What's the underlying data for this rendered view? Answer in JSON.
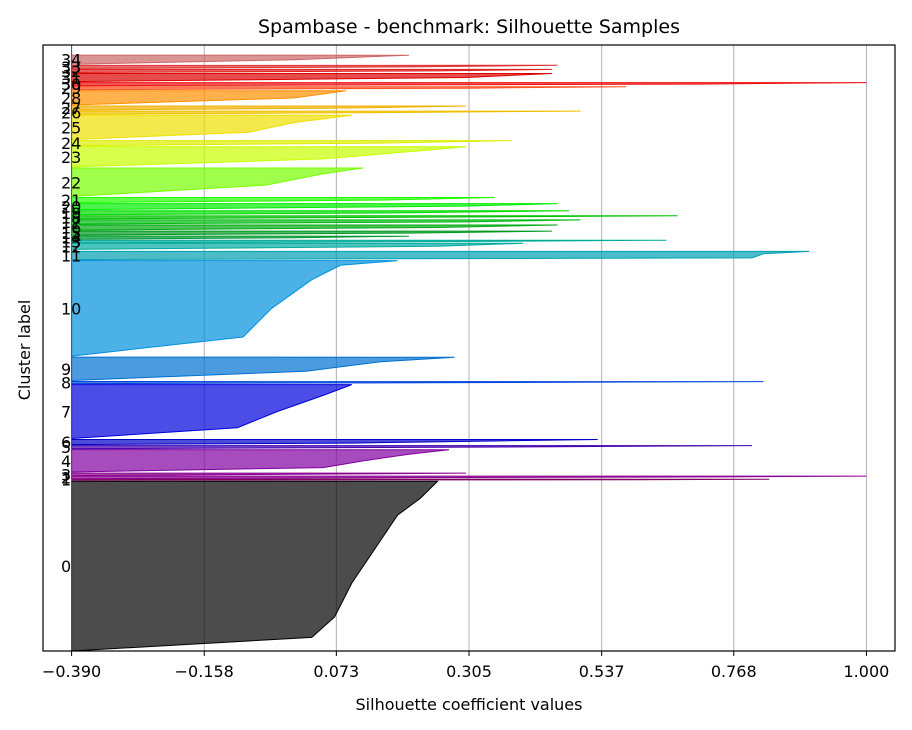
{
  "chart_data": {
    "type": "area",
    "title": "Spambase - benchmark: Silhouette Samples",
    "xlabel": "Silhouette coefficient values",
    "ylabel": "Cluster label",
    "xlim": [
      -0.44,
      1.05
    ],
    "xticks": [
      -0.39,
      -0.158,
      0.073,
      0.305,
      0.537,
      0.768,
      1.0
    ],
    "xtick_labels": [
      "−0.390",
      "−0.158",
      "0.073",
      "0.305",
      "0.537",
      "0.768",
      "1.000"
    ],
    "grid": "vertical",
    "baseline": -0.39,
    "clusters": [
      {
        "label": "0",
        "color": "#000000",
        "band": [
          0,
          167
        ],
        "profile": [
          [
            0.0,
            0.25
          ],
          [
            0.1,
            0.22
          ],
          [
            0.2,
            0.18
          ],
          [
            0.4,
            0.14
          ],
          [
            0.6,
            0.1
          ],
          [
            0.8,
            0.07
          ],
          [
            0.92,
            0.03
          ],
          [
            1.0,
            -0.39
          ]
        ]
      },
      {
        "label": "1",
        "color": "#800060",
        "band": [
          168,
          169
        ],
        "profile": [
          [
            0.0,
            0.83
          ],
          [
            0.5,
            0.6
          ],
          [
            1.0,
            -0.39
          ]
        ]
      },
      {
        "label": "2",
        "color": "#8a0090",
        "band": [
          169.5,
          172
        ],
        "profile": [
          [
            0.0,
            1.0
          ],
          [
            0.3,
            0.75
          ],
          [
            0.6,
            0.2
          ],
          [
            1.0,
            -0.39
          ]
        ]
      },
      {
        "label": "3",
        "color": "#8a0090",
        "band": [
          172.5,
          175
        ],
        "profile": [
          [
            0.0,
            0.3
          ],
          [
            0.5,
            0.0
          ],
          [
            1.0,
            -0.39
          ]
        ]
      },
      {
        "label": "4",
        "color": "#8000a0",
        "band": [
          176,
          198
        ],
        "profile": [
          [
            0.0,
            0.27
          ],
          [
            0.2,
            0.2
          ],
          [
            0.5,
            0.12
          ],
          [
            0.8,
            0.05
          ],
          [
            1.0,
            -0.39
          ]
        ]
      },
      {
        "label": "5",
        "color": "#4000b0",
        "band": [
          199,
          202
        ],
        "profile": [
          [
            0.0,
            0.8
          ],
          [
            0.4,
            0.45
          ],
          [
            1.0,
            -0.39
          ]
        ]
      },
      {
        "label": "6",
        "color": "#0000c8",
        "band": [
          203,
          208
        ],
        "profile": [
          [
            0.0,
            0.53
          ],
          [
            0.3,
            0.35
          ],
          [
            0.7,
            0.1
          ],
          [
            1.0,
            -0.39
          ]
        ]
      },
      {
        "label": "7",
        "color": "#0000dd",
        "band": [
          209,
          262
        ],
        "profile": [
          [
            0.0,
            0.1
          ],
          [
            0.2,
            0.05
          ],
          [
            0.5,
            -0.03
          ],
          [
            0.8,
            -0.1
          ],
          [
            1.0,
            -0.39
          ]
        ]
      },
      {
        "label": "8",
        "color": "#0044dd",
        "band": [
          263,
          265
        ],
        "profile": [
          [
            0.0,
            0.82
          ],
          [
            0.5,
            0.3
          ],
          [
            1.0,
            -0.39
          ]
        ]
      },
      {
        "label": "9",
        "color": "#0070d0",
        "band": [
          266,
          289
        ],
        "profile": [
          [
            0.0,
            0.28
          ],
          [
            0.2,
            0.15
          ],
          [
            0.6,
            0.02
          ],
          [
            1.0,
            -0.39
          ]
        ]
      },
      {
        "label": "10",
        "color": "#0090dd",
        "band": [
          290,
          384
        ],
        "profile": [
          [
            0.0,
            0.18
          ],
          [
            0.05,
            0.08
          ],
          [
            0.2,
            0.03
          ],
          [
            0.5,
            -0.04
          ],
          [
            0.8,
            -0.09
          ],
          [
            1.0,
            -0.39
          ]
        ]
      },
      {
        "label": "11",
        "color": "#00a0b0",
        "band": [
          385,
          393
        ],
        "profile": [
          [
            0.0,
            0.9
          ],
          [
            0.3,
            0.82
          ],
          [
            0.8,
            0.8
          ],
          [
            1.0,
            -0.39
          ]
        ]
      },
      {
        "label": "12",
        "color": "#00aaa0",
        "band": [
          395,
          401
        ],
        "profile": [
          [
            0.0,
            0.4
          ],
          [
            0.5,
            0.25
          ],
          [
            1.0,
            -0.39
          ]
        ]
      },
      {
        "label": "13",
        "color": "#00aa99",
        "band": [
          401.5,
          404
        ],
        "profile": [
          [
            0.0,
            0.65
          ],
          [
            0.5,
            0.3
          ],
          [
            1.0,
            -0.39
          ]
        ]
      },
      {
        "label": "14",
        "color": "#009930",
        "band": [
          405,
          408
        ],
        "profile": [
          [
            0.0,
            0.2
          ],
          [
            0.5,
            0.0
          ],
          [
            1.0,
            -0.39
          ]
        ]
      },
      {
        "label": "15",
        "color": "#009920",
        "band": [
          409,
          413
        ],
        "profile": [
          [
            0.0,
            0.45
          ],
          [
            0.5,
            0.2
          ],
          [
            1.0,
            -0.39
          ]
        ]
      },
      {
        "label": "16",
        "color": "#00aa10",
        "band": [
          414,
          419
        ],
        "profile": [
          [
            0.0,
            0.46
          ],
          [
            0.5,
            0.25
          ],
          [
            1.0,
            -0.39
          ]
        ]
      },
      {
        "label": "17",
        "color": "#00bb10",
        "band": [
          420,
          424
        ],
        "profile": [
          [
            0.0,
            0.5
          ],
          [
            0.5,
            0.3
          ],
          [
            1.0,
            -0.39
          ]
        ]
      },
      {
        "label": "18",
        "color": "#00c000",
        "band": [
          425,
          428
        ],
        "profile": [
          [
            0.0,
            0.67
          ],
          [
            0.5,
            0.2
          ],
          [
            1.0,
            -0.39
          ]
        ]
      },
      {
        "label": "19",
        "color": "#00dd00",
        "band": [
          429,
          433
        ],
        "profile": [
          [
            0.0,
            0.48
          ],
          [
            0.5,
            0.2
          ],
          [
            1.0,
            -0.39
          ]
        ]
      },
      {
        "label": "20",
        "color": "#00ee00",
        "band": [
          434,
          440
        ],
        "profile": [
          [
            0.0,
            0.46
          ],
          [
            0.4,
            0.3
          ],
          [
            1.0,
            -0.39
          ]
        ]
      },
      {
        "label": "21",
        "color": "#22ff00",
        "band": [
          441,
          446
        ],
        "profile": [
          [
            0.0,
            0.35
          ],
          [
            0.5,
            0.15
          ],
          [
            1.0,
            -0.39
          ]
        ]
      },
      {
        "label": "22",
        "color": "#77ff00",
        "band": [
          447,
          475
        ],
        "profile": [
          [
            0.0,
            0.12
          ],
          [
            0.2,
            0.05
          ],
          [
            0.6,
            -0.05
          ],
          [
            1.0,
            -0.39
          ]
        ]
      },
      {
        "label": "23",
        "color": "#c8ff00",
        "band": [
          476,
          496
        ],
        "profile": [
          [
            0.0,
            0.3
          ],
          [
            0.2,
            0.22
          ],
          [
            0.6,
            0.05
          ],
          [
            1.0,
            -0.39
          ]
        ]
      },
      {
        "label": "24",
        "color": "#ddee00",
        "band": [
          497,
          502
        ],
        "profile": [
          [
            0.0,
            0.38
          ],
          [
            0.5,
            0.15
          ],
          [
            1.0,
            -0.39
          ]
        ]
      },
      {
        "label": "25",
        "color": "#f0e000",
        "band": [
          503,
          527
        ],
        "profile": [
          [
            0.0,
            0.1
          ],
          [
            0.3,
            0.0
          ],
          [
            0.7,
            -0.08
          ],
          [
            1.0,
            -0.39
          ]
        ]
      },
      {
        "label": "26",
        "color": "#f0c000",
        "band": [
          528,
          531
        ],
        "profile": [
          [
            0.0,
            0.5
          ],
          [
            0.5,
            0.15
          ],
          [
            1.0,
            -0.39
          ]
        ]
      },
      {
        "label": "27",
        "color": "#f0b000",
        "band": [
          532,
          536
        ],
        "profile": [
          [
            0.0,
            0.3
          ],
          [
            0.5,
            0.1
          ],
          [
            1.0,
            -0.39
          ]
        ]
      },
      {
        "label": "28",
        "color": "#ff9000",
        "band": [
          537,
          551
        ],
        "profile": [
          [
            0.0,
            0.09
          ],
          [
            0.5,
            0.0
          ],
          [
            1.0,
            -0.39
          ]
        ]
      },
      {
        "label": "29",
        "color": "#ff5020",
        "band": [
          552,
          555
        ],
        "profile": [
          [
            0.0,
            0.58
          ],
          [
            0.5,
            0.3
          ],
          [
            1.0,
            -0.39
          ]
        ]
      },
      {
        "label": "30",
        "color": "#ee1010",
        "band": [
          556,
          559
        ],
        "profile": [
          [
            0.0,
            1.0
          ],
          [
            0.5,
            0.7
          ],
          [
            1.0,
            -0.39
          ]
        ]
      },
      {
        "label": "31",
        "color": "#dd0000",
        "band": [
          560,
          568
        ],
        "profile": [
          [
            0.0,
            0.45
          ],
          [
            0.5,
            0.3
          ],
          [
            1.0,
            -0.39
          ]
        ]
      },
      {
        "label": "32",
        "color": "#e02020",
        "band": [
          569,
          572
        ],
        "profile": [
          [
            0.0,
            0.45
          ],
          [
            0.5,
            0.25
          ],
          [
            1.0,
            -0.39
          ]
        ]
      },
      {
        "label": "33",
        "color": "#e03030",
        "band": [
          573,
          576
        ],
        "profile": [
          [
            0.0,
            0.46
          ],
          [
            0.5,
            0.2
          ],
          [
            1.0,
            -0.39
          ]
        ]
      },
      {
        "label": "34",
        "color": "#cc6666",
        "band": [
          577,
          586
        ],
        "profile": [
          [
            0.0,
            0.2
          ],
          [
            0.5,
            0.0
          ],
          [
            1.0,
            -0.39
          ]
        ]
      }
    ]
  }
}
